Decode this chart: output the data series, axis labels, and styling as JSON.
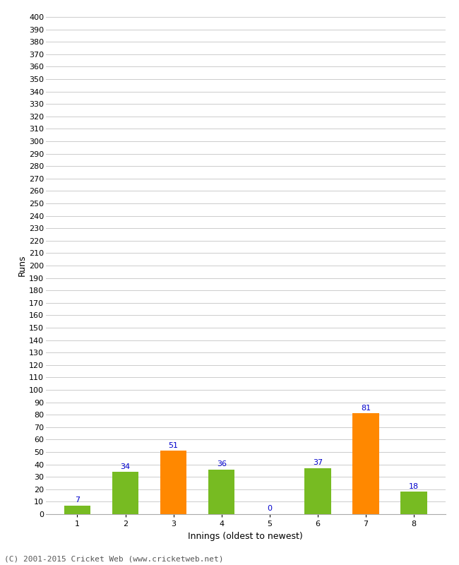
{
  "categories": [
    "1",
    "2",
    "3",
    "4",
    "5",
    "6",
    "7",
    "8"
  ],
  "values": [
    7,
    34,
    51,
    36,
    0,
    37,
    81,
    18
  ],
  "bar_colors": [
    "#77bb22",
    "#77bb22",
    "#ff8800",
    "#77bb22",
    "#77bb22",
    "#77bb22",
    "#ff8800",
    "#77bb22"
  ],
  "xlabel": "Innings (oldest to newest)",
  "ylabel": "Runs",
  "ylim": [
    0,
    400
  ],
  "yticks": [
    0,
    10,
    20,
    30,
    40,
    50,
    60,
    70,
    80,
    90,
    100,
    110,
    120,
    130,
    140,
    150,
    160,
    170,
    180,
    190,
    200,
    210,
    220,
    230,
    240,
    250,
    260,
    270,
    280,
    290,
    300,
    310,
    320,
    330,
    340,
    350,
    360,
    370,
    380,
    390,
    400
  ],
  "label_color": "#0000cc",
  "label_fontsize": 8,
  "axis_label_fontsize": 9,
  "tick_fontsize": 8,
  "footer": "(C) 2001-2015 Cricket Web (www.cricketweb.net)",
  "background_color": "#ffffff",
  "grid_color": "#cccccc",
  "bar_width": 0.55
}
